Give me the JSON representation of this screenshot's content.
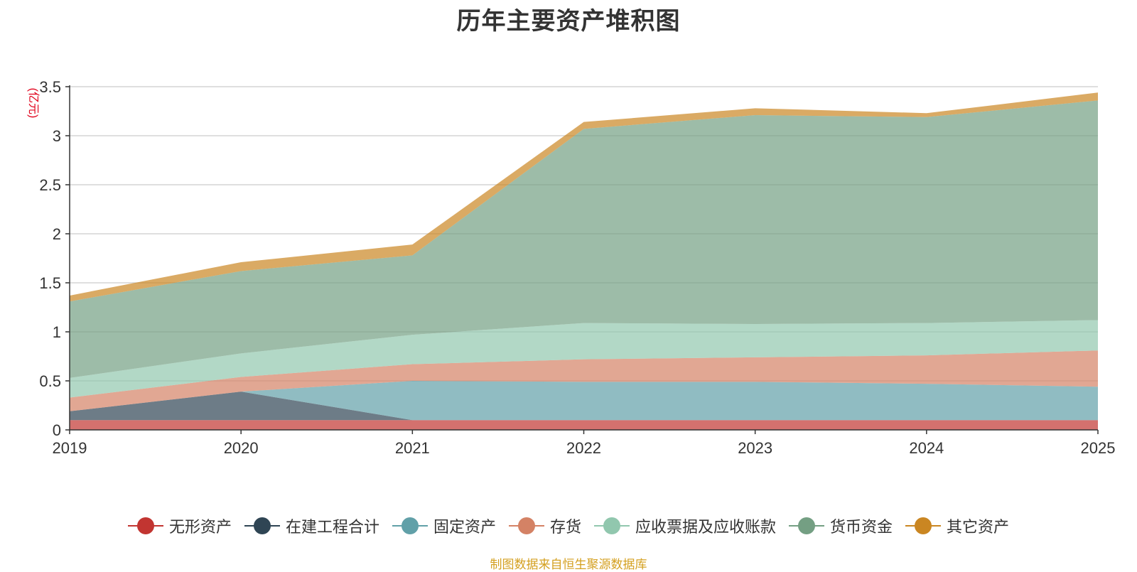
{
  "chart_data": {
    "type": "area",
    "stacked": true,
    "title": "历年主要资产堆积图",
    "ylabel": "(亿元)",
    "xlabel": "",
    "ylim": [
      0,
      3.5
    ],
    "yticks": [
      "0",
      "0.5",
      "1",
      "1.5",
      "2",
      "2.5",
      "3",
      "3.5"
    ],
    "categories": [
      "2019",
      "2020",
      "2021",
      "2022",
      "2023",
      "2024",
      "2025"
    ],
    "series": [
      {
        "name": "无形资产",
        "color": "#c23531",
        "values": [
          0.1,
          0.1,
          0.1,
          0.1,
          0.1,
          0.1,
          0.1
        ]
      },
      {
        "name": "在建工程合计",
        "color": "#2f4554",
        "values": [
          0.09,
          0.29,
          0.0,
          0.0,
          0.0,
          0.0,
          0.0
        ]
      },
      {
        "name": "固定资产",
        "color": "#61a0a8",
        "values": [
          0.0,
          0.0,
          0.4,
          0.39,
          0.39,
          0.37,
          0.34
        ]
      },
      {
        "name": "存货",
        "color": "#d48265",
        "values": [
          0.14,
          0.15,
          0.17,
          0.23,
          0.25,
          0.29,
          0.37
        ]
      },
      {
        "name": "应收票据及应收账款",
        "color": "#91c7ae",
        "values": [
          0.2,
          0.24,
          0.3,
          0.37,
          0.34,
          0.33,
          0.31
        ]
      },
      {
        "name": "货币资金",
        "color": "#749f83",
        "values": [
          0.78,
          0.84,
          0.81,
          1.98,
          2.13,
          2.1,
          2.24
        ]
      },
      {
        "name": "其它资产",
        "color": "#ca8622",
        "values": [
          0.06,
          0.09,
          0.11,
          0.07,
          0.07,
          0.04,
          0.08
        ]
      }
    ]
  },
  "source": "制图数据来自恒生聚源数据库"
}
